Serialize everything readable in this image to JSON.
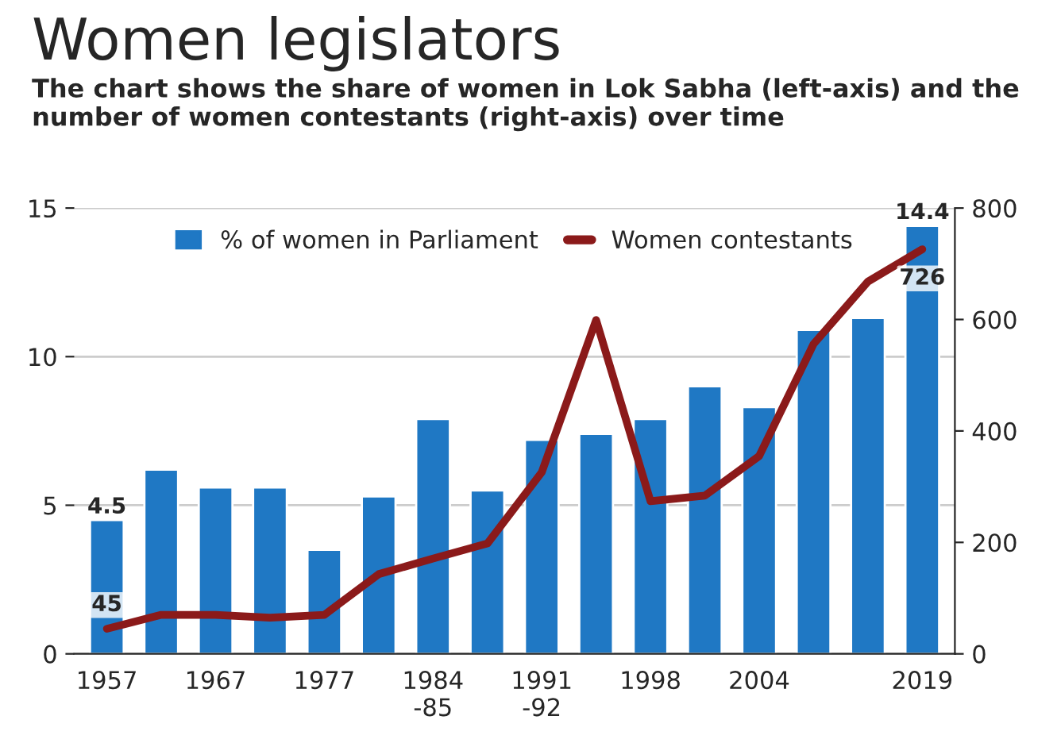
{
  "chart_data": {
    "type": "bar",
    "title": "Women legislators",
    "subtitle": "The chart shows the share of women in Lok Sabha (left-axis) and the number of women contestants (right-axis) over time",
    "categories": [
      "1957",
      null,
      "1967",
      null,
      "1977",
      null,
      "1984\n-85",
      null,
      "1991\n-92",
      null,
      "1998",
      null,
      "2004",
      null,
      null,
      "2019"
    ],
    "series": [
      {
        "name": "% of women in Parliament",
        "color": "#1f78c4",
        "values": [
          4.5,
          6.2,
          5.6,
          5.6,
          3.5,
          5.3,
          7.9,
          5.5,
          7.2,
          7.4,
          7.9,
          9.0,
          8.3,
          10.9,
          11.3,
          14.4
        ],
        "value_labels": [
          "4.5",
          null,
          null,
          null,
          null,
          null,
          null,
          null,
          null,
          null,
          null,
          null,
          null,
          null,
          null,
          "14.4"
        ]
      },
      {
        "name": "Women contestants",
        "type": "line",
        "axis": "y2",
        "color": "#8b1a1a",
        "values": [
          45,
          70,
          70,
          65,
          70,
          143,
          171,
          198,
          326,
          599,
          274,
          284,
          355,
          556,
          668,
          726
        ],
        "value_labels": [
          "45",
          null,
          null,
          null,
          null,
          null,
          null,
          null,
          null,
          null,
          null,
          null,
          null,
          null,
          null,
          "726"
        ]
      }
    ],
    "ylim": [
      0,
      15
    ],
    "yticks": [
      0,
      5,
      10,
      15
    ],
    "y2lim": [
      0,
      800
    ],
    "y2ticks": [
      0,
      200,
      400,
      600,
      800
    ],
    "grid": "y",
    "legend": "top"
  }
}
